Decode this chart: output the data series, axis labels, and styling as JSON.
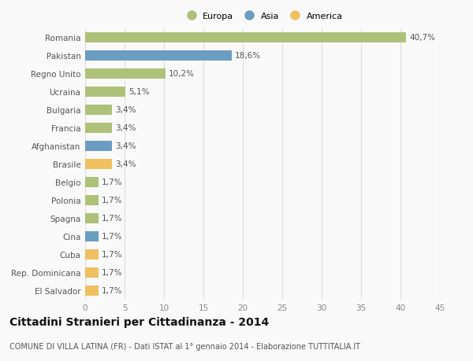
{
  "categories": [
    "Romania",
    "Pakistan",
    "Regno Unito",
    "Ucraina",
    "Bulgaria",
    "Francia",
    "Afghanistan",
    "Brasile",
    "Belgio",
    "Polonia",
    "Spagna",
    "Cina",
    "Cuba",
    "Rep. Dominicana",
    "El Salvador"
  ],
  "values": [
    40.7,
    18.6,
    10.2,
    5.1,
    3.4,
    3.4,
    3.4,
    3.4,
    1.7,
    1.7,
    1.7,
    1.7,
    1.7,
    1.7,
    1.7
  ],
  "labels": [
    "40,7%",
    "18,6%",
    "10,2%",
    "5,1%",
    "3,4%",
    "3,4%",
    "3,4%",
    "3,4%",
    "1,7%",
    "1,7%",
    "1,7%",
    "1,7%",
    "1,7%",
    "1,7%",
    "1,7%"
  ],
  "continents": [
    "Europa",
    "Asia",
    "Europa",
    "Europa",
    "Europa",
    "Europa",
    "Asia",
    "America",
    "Europa",
    "Europa",
    "Europa",
    "Asia",
    "America",
    "America",
    "America"
  ],
  "continent_colors": {
    "Europa": "#adc178",
    "Asia": "#6b9dc2",
    "America": "#f0c060"
  },
  "legend_labels": [
    "Europa",
    "Asia",
    "America"
  ],
  "legend_colors": [
    "#adc178",
    "#6b9dc2",
    "#f0c060"
  ],
  "xlim": [
    0,
    45
  ],
  "xticks": [
    0,
    5,
    10,
    15,
    20,
    25,
    30,
    35,
    40,
    45
  ],
  "title": "Cittadini Stranieri per Cittadinanza - 2014",
  "subtitle": "COMUNE DI VILLA LATINA (FR) - Dati ISTAT al 1° gennaio 2014 - Elaborazione TUTTITALIA.IT",
  "background_color": "#f9f9f9",
  "grid_color": "#dddddd",
  "bar_height": 0.55,
  "label_fontsize": 7.5,
  "ytick_fontsize": 7.5,
  "xtick_fontsize": 7.5,
  "title_fontsize": 10,
  "subtitle_fontsize": 7
}
